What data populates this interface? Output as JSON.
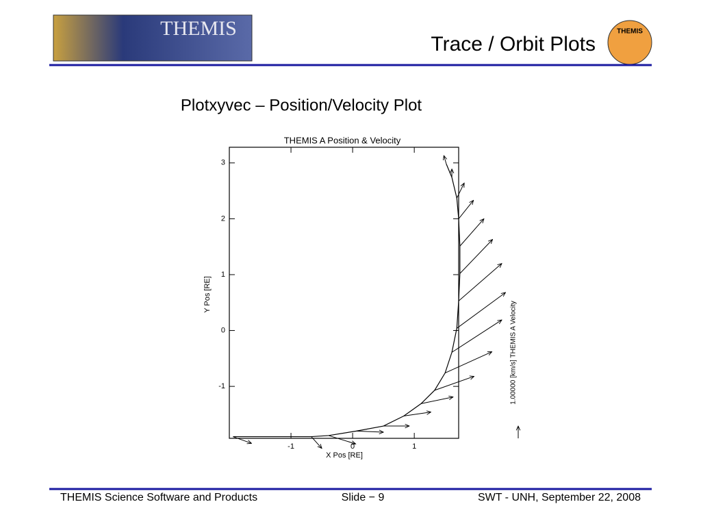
{
  "header": {
    "logo_text": "THEMIS",
    "title": "Trace / Orbit Plots",
    "badge_text": "THEMIS"
  },
  "subtitle": "Plotxyvec – Position/Velocity Plot",
  "chart_data": {
    "type": "vector",
    "title": "THEMIS A Position & Velocity",
    "x_label": "X Pos [RE]",
    "y_label": "Y Pos [RE]",
    "xlim": [
      -2,
      1.72
    ],
    "ylim": [
      -1.93,
      3.28
    ],
    "xticks": [
      -1,
      0,
      1
    ],
    "yticks": [
      -1,
      0,
      1,
      2,
      3
    ],
    "x": [
      -1.94,
      -0.67,
      -0.39,
      0.06,
      0.5,
      0.83,
      1.11,
      1.33,
      1.5,
      1.61,
      1.69,
      1.72,
      1.74,
      1.74,
      1.72,
      1.69,
      1.61,
      1.52
    ],
    "y": [
      -1.9,
      -1.9,
      -1.88,
      -1.8,
      -1.71,
      -1.53,
      -1.31,
      -1.07,
      -0.76,
      -0.39,
      0.04,
      0.53,
      1.02,
      1.51,
      2.0,
      2.37,
      2.74,
      2.98
    ],
    "dx": [
      0.3,
      0.17,
      0.44,
      0.44,
      0.42,
      0.44,
      0.52,
      0.64,
      0.76,
      0.81,
      0.79,
      0.7,
      0.53,
      0.39,
      0.24,
      0.12,
      0,
      -0.04
    ],
    "dy": [
      -0.12,
      -0.21,
      -0.15,
      -0.02,
      0,
      0.07,
      0.12,
      0.25,
      0.38,
      0.58,
      0.64,
      0.67,
      0.61,
      0.49,
      0.33,
      0.27,
      0.15,
      0.15
    ],
    "color": "#000000",
    "legend_label": "1.00000 [km/s] THEMIS A Velocity"
  },
  "footer": {
    "left": "THEMIS Science Software and Products",
    "center": "Slide − 9",
    "right": "SWT - UNH, September 22, 2008"
  }
}
